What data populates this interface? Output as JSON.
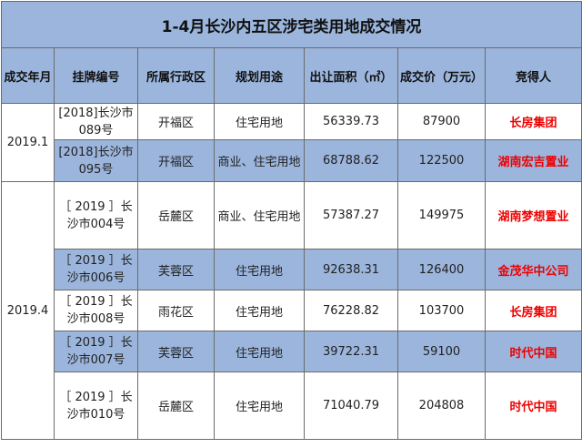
{
  "title": "1-4月长沙内五区涉宅类用地成交情况",
  "headers": [
    "成交年月",
    "挂牌编号",
    "所属行政区",
    "规划用途",
    "出让面积（㎡）",
    "成交价（万元）",
    "竞得人"
  ],
  "groups": [
    {
      "month": "2019.1"
    },
    {
      "month": "2019.4"
    }
  ],
  "rows": [
    {
      "code_l1": "[2018]长沙市",
      "code_l2": "089号",
      "district": "开福区",
      "use": "住宅用地",
      "area": "56339.73",
      "price": "87900",
      "winner": "长房集团"
    },
    {
      "code_l1": "[2018]长沙市",
      "code_l2": "095号",
      "district": "开福区",
      "use": "商业、住宅用地",
      "area": "68788.62",
      "price": "122500",
      "winner": "湖南宏吉置业"
    },
    {
      "code_l1": "［ 2019 ］长",
      "code_l2": "沙市004号",
      "district": "岳麓区",
      "use": "商业、住宅用地",
      "area": "57387.27",
      "price": "149975",
      "winner": "湖南梦想置业"
    },
    {
      "code_l1": "［ 2019 ］长",
      "code_l2": "沙市006号",
      "district": "芙蓉区",
      "use": "住宅用地",
      "area": "92638.31",
      "price": "126400",
      "winner": "金茂华中公司"
    },
    {
      "code_l1": "［ 2019 ］长",
      "code_l2": "沙市008号",
      "district": "雨花区",
      "use": "住宅用地",
      "area": "76228.82",
      "price": "103700",
      "winner": "长房集团"
    },
    {
      "code_l1": "［ 2019 ］长",
      "code_l2": "沙市007号",
      "district": "芙蓉区",
      "use": "住宅用地",
      "area": "39722.31",
      "price": "59100",
      "winner": "时代中国"
    },
    {
      "code_l1": "［ 2019 ］长",
      "code_l2": "沙市010号",
      "district": "岳麓区",
      "use": "住宅用地",
      "area": "71040.79",
      "price": "204808",
      "winner": "时代中国"
    }
  ],
  "colors": {
    "header_bg": "#9bb5dc",
    "winner_text": "#ee0000",
    "border": "#6b6b6b"
  }
}
